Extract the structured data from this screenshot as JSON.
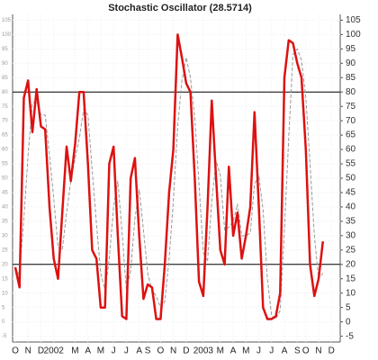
{
  "chart_data": {
    "type": "line",
    "title": "Stochastic Oscillator (28.5714)",
    "categories": [
      "O",
      null,
      null,
      "N",
      null,
      null,
      "D",
      null,
      null,
      "2002",
      null,
      null,
      null,
      null,
      "M",
      null,
      null,
      "A",
      null,
      null,
      "M",
      null,
      null,
      "J",
      null,
      null,
      "J",
      null,
      null,
      "A",
      null,
      "S",
      null,
      null,
      "O",
      null,
      null,
      "N",
      null,
      null,
      "D",
      null,
      null,
      null,
      "2003",
      null,
      null,
      null,
      "M",
      null,
      null,
      "A",
      null,
      null,
      "M",
      null,
      null,
      "J",
      null,
      null,
      "J",
      null,
      null,
      "A",
      null,
      null,
      "S",
      null,
      "O",
      null,
      null,
      "N",
      null,
      null,
      "D",
      null
    ],
    "series": [
      {
        "color": "#dd1111",
        "values": [
          19,
          12,
          78,
          84,
          66,
          81,
          68,
          67,
          40,
          22,
          15,
          38,
          61,
          49,
          62,
          80,
          80,
          55,
          25,
          22,
          5,
          5,
          55,
          61,
          30,
          2,
          1,
          50,
          57,
          30,
          8,
          13,
          12,
          1,
          1,
          20,
          45,
          60,
          100,
          92,
          83,
          80,
          50,
          14,
          9,
          40,
          77,
          50,
          25,
          20,
          54,
          30,
          38,
          22,
          30,
          40,
          73,
          40,
          5,
          1,
          1,
          2,
          10,
          85,
          98,
          97,
          90,
          85,
          60,
          20,
          9,
          15,
          28,
          null,
          null,
          null
        ]
      },
      {
        "color": "#999999",
        "dashed": true,
        "values": [
          19,
          16,
          36,
          58,
          76,
          77,
          72,
          72,
          58,
          43,
          26,
          25,
          38,
          49,
          57,
          64,
          74,
          72,
          53,
          34,
          17,
          11,
          22,
          40,
          49,
          31,
          11,
          18,
          36,
          46,
          32,
          17,
          11,
          9,
          5,
          7,
          22,
          42,
          68,
          84,
          92,
          85,
          71,
          48,
          24,
          21,
          42,
          56,
          51,
          32,
          33,
          35,
          41,
          30,
          30,
          31,
          48,
          51,
          39,
          15,
          2,
          1,
          4,
          32,
          64,
          93,
          95,
          91,
          78,
          55,
          30,
          15,
          17,
          null,
          null,
          null
        ]
      }
    ],
    "ylim": [
      -7,
      107
    ],
    "yticks": [
      -5,
      0,
      5,
      10,
      15,
      20,
      25,
      30,
      35,
      40,
      45,
      50,
      55,
      60,
      65,
      70,
      75,
      80,
      85,
      90,
      95,
      100,
      105
    ],
    "hlines": [
      80,
      20
    ],
    "hline_color": "#000000",
    "grid": true
  }
}
